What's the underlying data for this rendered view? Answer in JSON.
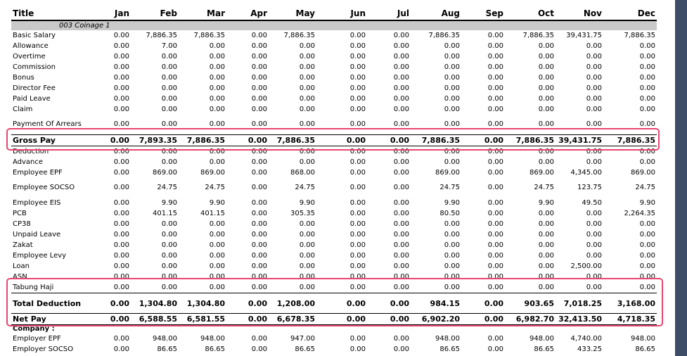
{
  "columns": [
    "Title",
    "Jan",
    "Feb",
    "Mar",
    "Apr",
    "May",
    "Jun",
    "Jul",
    "Aug",
    "Sep",
    "Oct",
    "Nov",
    "Dec"
  ],
  "group_label": "003  Coinage 1",
  "rows": [
    {
      "label": "Basic Salary",
      "values": [
        "0.00",
        "7,886.35",
        "7,886.35",
        "0.00",
        "7,886.35",
        "0.00",
        "0.00",
        "7,886.35",
        "0.00",
        "7,886.35",
        "39,431.75",
        "7,886.35"
      ]
    },
    {
      "label": "Allowance",
      "values": [
        "0.00",
        "7.00",
        "0.00",
        "0.00",
        "0.00",
        "0.00",
        "0.00",
        "0.00",
        "0.00",
        "0.00",
        "0.00",
        "0.00"
      ]
    },
    {
      "label": "Overtime",
      "values": [
        "0.00",
        "0.00",
        "0.00",
        "0.00",
        "0.00",
        "0.00",
        "0.00",
        "0.00",
        "0.00",
        "0.00",
        "0.00",
        "0.00"
      ]
    },
    {
      "label": "Commission",
      "values": [
        "0.00",
        "0.00",
        "0.00",
        "0.00",
        "0.00",
        "0.00",
        "0.00",
        "0.00",
        "0.00",
        "0.00",
        "0.00",
        "0.00"
      ]
    },
    {
      "label": "Bonus",
      "values": [
        "0.00",
        "0.00",
        "0.00",
        "0.00",
        "0.00",
        "0.00",
        "0.00",
        "0.00",
        "0.00",
        "0.00",
        "0.00",
        "0.00"
      ]
    },
    {
      "label": "Director Fee",
      "values": [
        "0.00",
        "0.00",
        "0.00",
        "0.00",
        "0.00",
        "0.00",
        "0.00",
        "0.00",
        "0.00",
        "0.00",
        "0.00",
        "0.00"
      ]
    },
    {
      "label": "Paid Leave",
      "values": [
        "0.00",
        "0.00",
        "0.00",
        "0.00",
        "0.00",
        "0.00",
        "0.00",
        "0.00",
        "0.00",
        "0.00",
        "0.00",
        "0.00"
      ]
    },
    {
      "label": "Claim",
      "values": [
        "0.00",
        "0.00",
        "0.00",
        "0.00",
        "0.00",
        "0.00",
        "0.00",
        "0.00",
        "0.00",
        "0.00",
        "0.00",
        "0.00"
      ]
    },
    {
      "label": "Payment Of Arrears",
      "values": [
        "0.00",
        "0.00",
        "0.00",
        "0.00",
        "0.00",
        "0.00",
        "0.00",
        "0.00",
        "0.00",
        "0.00",
        "0.00",
        "0.00"
      ],
      "tall": true
    },
    {
      "label": "Gross Pay",
      "values": [
        "0.00",
        "7,893.35",
        "7,886.35",
        "0.00",
        "7,886.35",
        "0.00",
        "0.00",
        "7,886.35",
        "0.00",
        "7,886.35",
        "39,431.75",
        "7,886.35"
      ],
      "total": true
    },
    {
      "label": "Deduction",
      "values": [
        "0.00",
        "0.00",
        "0.00",
        "0.00",
        "0.00",
        "0.00",
        "0.00",
        "0.00",
        "0.00",
        "0.00",
        "0.00",
        "0.00"
      ]
    },
    {
      "label": "Advance",
      "values": [
        "0.00",
        "0.00",
        "0.00",
        "0.00",
        "0.00",
        "0.00",
        "0.00",
        "0.00",
        "0.00",
        "0.00",
        "0.00",
        "0.00"
      ]
    },
    {
      "label": "Employee EPF",
      "values": [
        "0.00",
        "869.00",
        "869.00",
        "0.00",
        "868.00",
        "0.00",
        "0.00",
        "869.00",
        "0.00",
        "869.00",
        "4,345.00",
        "869.00"
      ]
    },
    {
      "label": "Employee SOCSO",
      "values": [
        "0.00",
        "24.75",
        "24.75",
        "0.00",
        "24.75",
        "0.00",
        "0.00",
        "24.75",
        "0.00",
        "24.75",
        "123.75",
        "24.75"
      ],
      "tall": true
    },
    {
      "label": "Employee EIS",
      "values": [
        "0.00",
        "9.90",
        "9.90",
        "0.00",
        "9.90",
        "0.00",
        "0.00",
        "9.90",
        "0.00",
        "9.90",
        "49.50",
        "9.90"
      ]
    },
    {
      "label": "PCB",
      "values": [
        "0.00",
        "401.15",
        "401.15",
        "0.00",
        "305.35",
        "0.00",
        "0.00",
        "80.50",
        "0.00",
        "0.00",
        "0.00",
        "2,264.35"
      ]
    },
    {
      "label": "CP38",
      "values": [
        "0.00",
        "0.00",
        "0.00",
        "0.00",
        "0.00",
        "0.00",
        "0.00",
        "0.00",
        "0.00",
        "0.00",
        "0.00",
        "0.00"
      ]
    },
    {
      "label": "Unpaid Leave",
      "values": [
        "0.00",
        "0.00",
        "0.00",
        "0.00",
        "0.00",
        "0.00",
        "0.00",
        "0.00",
        "0.00",
        "0.00",
        "0.00",
        "0.00"
      ]
    },
    {
      "label": "Zakat",
      "values": [
        "0.00",
        "0.00",
        "0.00",
        "0.00",
        "0.00",
        "0.00",
        "0.00",
        "0.00",
        "0.00",
        "0.00",
        "0.00",
        "0.00"
      ]
    },
    {
      "label": "Employee Levy",
      "values": [
        "0.00",
        "0.00",
        "0.00",
        "0.00",
        "0.00",
        "0.00",
        "0.00",
        "0.00",
        "0.00",
        "0.00",
        "0.00",
        "0.00"
      ]
    },
    {
      "label": "Loan",
      "values": [
        "0.00",
        "0.00",
        "0.00",
        "0.00",
        "0.00",
        "0.00",
        "0.00",
        "0.00",
        "0.00",
        "0.00",
        "2,500.00",
        "0.00"
      ]
    },
    {
      "label": "ASN",
      "values": [
        "0.00",
        "0.00",
        "0.00",
        "0.00",
        "0.00",
        "0.00",
        "0.00",
        "0.00",
        "0.00",
        "0.00",
        "0.00",
        "0.00"
      ]
    },
    {
      "label": "Tabung Haji",
      "values": [
        "0.00",
        "0.00",
        "0.00",
        "0.00",
        "0.00",
        "0.00",
        "0.00",
        "0.00",
        "0.00",
        "0.00",
        "0.00",
        "0.00"
      ]
    },
    {
      "label": "Total Deduction",
      "values": [
        "0.00",
        "1,304.80",
        "1,304.80",
        "0.00",
        "1,208.00",
        "0.00",
        "0.00",
        "984.15",
        "0.00",
        "903.65",
        "7,018.25",
        "3,168.00"
      ],
      "total": true,
      "tall": true
    },
    {
      "label": "Net Pay",
      "values": [
        "0.00",
        "6,588.55",
        "6,581.55",
        "0.00",
        "6,678.35",
        "0.00",
        "0.00",
        "6,902.20",
        "0.00",
        "6,982.70",
        "32,413.50",
        "4,718.35"
      ],
      "total": true
    },
    {
      "label": "Company :",
      "values": [],
      "section": true
    },
    {
      "label": "Employer EPF",
      "values": [
        "0.00",
        "948.00",
        "948.00",
        "0.00",
        "947.00",
        "0.00",
        "0.00",
        "948.00",
        "0.00",
        "948.00",
        "4,740.00",
        "948.00"
      ]
    },
    {
      "label": "Employer SOCSO",
      "values": [
        "0.00",
        "86.65",
        "86.65",
        "0.00",
        "86.65",
        "0.00",
        "0.00",
        "86.65",
        "0.00",
        "86.65",
        "433.25",
        "86.65"
      ]
    }
  ],
  "colors": {
    "highlight": "#e8466f",
    "group_band": "#c9c9c9",
    "sidebar": "#3d4d68"
  }
}
